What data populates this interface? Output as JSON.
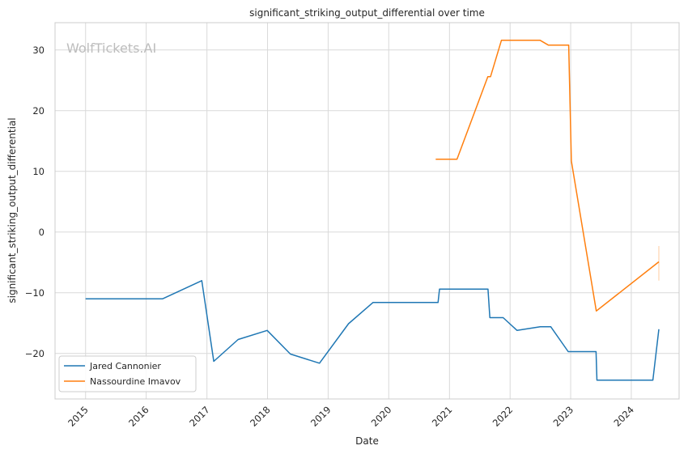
{
  "chart_data": {
    "type": "line",
    "title": "significant_striking_output_differential over time",
    "xlabel": "Date",
    "ylabel": "significant_striking_output_differential",
    "watermark": "WolfTickets.AI",
    "x_type": "date",
    "xlim": [
      "2014-07-01",
      "2024-10-15"
    ],
    "ylim": [
      -27.5,
      34.5
    ],
    "x_ticks": [
      "2015",
      "2016",
      "2017",
      "2018",
      "2019",
      "2020",
      "2021",
      "2022",
      "2023",
      "2024"
    ],
    "y_ticks": [
      -20,
      -10,
      0,
      10,
      20,
      30
    ],
    "grid": true,
    "legend_position": "lower-left",
    "series": [
      {
        "name": "Jared Cannonier",
        "color": "#1f77b4",
        "points": [
          [
            "2015-01-01",
            -11.0
          ],
          [
            "2016-04-08",
            -11.0
          ],
          [
            "2016-12-01",
            -8.0
          ],
          [
            "2017-02-11",
            -21.3
          ],
          [
            "2017-07-08",
            -17.7
          ],
          [
            "2017-12-30",
            -16.2
          ],
          [
            "2018-05-19",
            -20.1
          ],
          [
            "2018-11-10",
            -21.6
          ],
          [
            "2019-05-04",
            -15.1
          ],
          [
            "2019-09-28",
            -11.6
          ],
          [
            "2020-10-24",
            -11.6
          ],
          [
            "2020-11-02",
            -9.4
          ],
          [
            "2021-08-21",
            -9.4
          ],
          [
            "2021-09-01",
            -14.1
          ],
          [
            "2021-11-20",
            -14.1
          ],
          [
            "2022-02-12",
            -16.2
          ],
          [
            "2022-07-02",
            -15.6
          ],
          [
            "2022-09-03",
            -15.6
          ],
          [
            "2022-12-17",
            -19.7
          ],
          [
            "2023-06-03",
            -19.7
          ],
          [
            "2023-06-08",
            -24.4
          ],
          [
            "2024-05-10",
            -24.4
          ],
          [
            "2024-06-15",
            -16.0
          ]
        ]
      },
      {
        "name": "Nassourdine Imavov",
        "color": "#ff7f0e",
        "points": [
          [
            "2020-10-10",
            12.0
          ],
          [
            "2021-02-15",
            12.0
          ],
          [
            "2021-08-20",
            25.6
          ],
          [
            "2021-09-05",
            25.6
          ],
          [
            "2021-11-10",
            31.6
          ],
          [
            "2022-07-01",
            31.6
          ],
          [
            "2022-08-20",
            30.8
          ],
          [
            "2022-12-20",
            30.8
          ],
          [
            "2023-01-05",
            11.7
          ],
          [
            "2023-06-04",
            -13.0
          ],
          [
            "2024-06-15",
            -4.9
          ]
        ]
      }
    ],
    "error_bar": {
      "x": "2024-06-15",
      "low": -8.0,
      "high": -2.3,
      "color": "#ff7f0e"
    }
  }
}
